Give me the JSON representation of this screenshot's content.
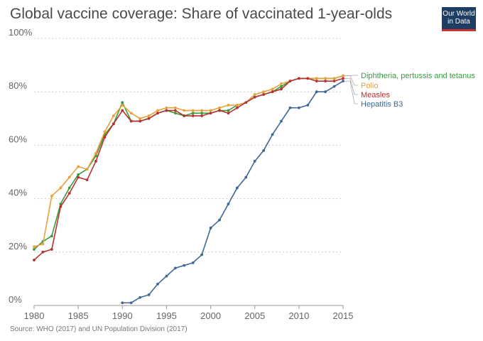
{
  "title": "Global vaccine coverage: Share of vaccinated 1-year-olds",
  "logo": {
    "line1": "Our World",
    "line2": "in Data"
  },
  "source": "Source: WHO (2017) and UN Population Division (2017)",
  "chart_data": {
    "type": "line",
    "title": "Global vaccine coverage: Share of vaccinated 1-year-olds",
    "xlabel": "",
    "ylabel": "",
    "xlim": [
      1980,
      2015
    ],
    "ylim": [
      0,
      100
    ],
    "x_ticks": [
      "1980",
      "1985",
      "1990",
      "1995",
      "2000",
      "2005",
      "2010",
      "2015"
    ],
    "y_ticks": [
      "0%",
      "20%",
      "40%",
      "60%",
      "80%",
      "100%"
    ],
    "grid": "horizontal dotted",
    "legend": "right, labels at line ends",
    "series": [
      {
        "name": "Diphtheria, pertussis and tetanus",
        "color": "#3a9a3f",
        "x": [
          1980,
          1981,
          1982,
          1983,
          1984,
          1985,
          1986,
          1987,
          1988,
          1989,
          1990,
          1991,
          1992,
          1993,
          1994,
          1995,
          1996,
          1997,
          1998,
          1999,
          2000,
          2001,
          2002,
          2003,
          2004,
          2005,
          2006,
          2007,
          2008,
          2009,
          2010,
          2011,
          2012,
          2013,
          2014,
          2015
        ],
        "values": [
          21,
          24,
          26,
          38,
          44,
          49,
          51,
          56,
          64,
          68,
          76,
          69,
          69,
          70,
          72,
          73,
          72,
          71,
          72,
          72,
          72,
          73,
          73,
          75,
          76,
          78,
          79,
          80,
          82,
          84,
          85,
          85,
          85,
          85,
          85,
          86
        ]
      },
      {
        "name": "Polio",
        "color": "#e6a13c",
        "x": [
          1980,
          1981,
          1982,
          1983,
          1984,
          1985,
          1986,
          1987,
          1988,
          1989,
          1990,
          1991,
          1992,
          1993,
          1994,
          1995,
          1996,
          1997,
          1998,
          1999,
          2000,
          2001,
          2002,
          2003,
          2004,
          2005,
          2006,
          2007,
          2008,
          2009,
          2010,
          2011,
          2012,
          2013,
          2014,
          2015
        ],
        "values": [
          22,
          23,
          41,
          44,
          48,
          52,
          51,
          57,
          65,
          71,
          75,
          72,
          70,
          71,
          73,
          74,
          74,
          73,
          73,
          73,
          73,
          74,
          75,
          75,
          76,
          79,
          80,
          81,
          83,
          84,
          85,
          85,
          85,
          85,
          85,
          86
        ]
      },
      {
        "name": "Measles",
        "color": "#b8312f",
        "x": [
          1980,
          1981,
          1982,
          1983,
          1984,
          1985,
          1986,
          1987,
          1988,
          1989,
          1990,
          1991,
          1992,
          1993,
          1994,
          1995,
          1996,
          1997,
          1998,
          1999,
          2000,
          2001,
          2002,
          2003,
          2004,
          2005,
          2006,
          2007,
          2008,
          2009,
          2010,
          2011,
          2012,
          2013,
          2014,
          2015
        ],
        "values": [
          17,
          20,
          21,
          37,
          42,
          48,
          47,
          54,
          63,
          68,
          73,
          69,
          69,
          70,
          72,
          73,
          73,
          71,
          71,
          71,
          72,
          73,
          72,
          74,
          76,
          78,
          79,
          80,
          81,
          84,
          85,
          85,
          84,
          84,
          84,
          85
        ]
      },
      {
        "name": "Hepatitis B3",
        "color": "#3d6896",
        "x": [
          1990,
          1991,
          1992,
          1993,
          1994,
          1995,
          1996,
          1997,
          1998,
          1999,
          2000,
          2001,
          2002,
          2003,
          2004,
          2005,
          2006,
          2007,
          2008,
          2009,
          2010,
          2011,
          2012,
          2013,
          2014,
          2015
        ],
        "values": [
          1,
          1,
          3,
          4,
          8,
          11,
          14,
          15,
          16,
          19,
          29,
          32,
          38,
          44,
          48,
          54,
          58,
          64,
          69,
          74,
          74,
          75,
          80,
          80,
          82,
          84
        ]
      }
    ]
  }
}
